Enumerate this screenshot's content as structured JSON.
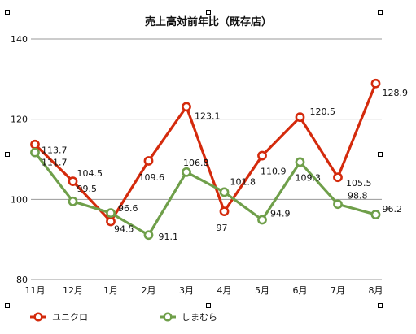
{
  "chart_data": {
    "type": "line",
    "title": "売上高対前年比（既存店）",
    "xlabel": "",
    "ylabel": "",
    "categories": [
      "11月",
      "12月",
      "1月",
      "2月",
      "3月",
      "4月",
      "5月",
      "6月",
      "7月",
      "8月"
    ],
    "ylim": [
      80,
      140
    ],
    "yticks": [
      80,
      100,
      120,
      140
    ],
    "grid": true,
    "legend_position": "bottom",
    "series": [
      {
        "name": "ユニクロ",
        "color": "#d42a0c",
        "values": [
          113.7,
          104.5,
          94.5,
          109.6,
          123.1,
          97,
          110.9,
          120.5,
          105.5,
          128.9
        ],
        "labels": [
          "113.7",
          "104.5",
          "94.5",
          "109.6",
          "123.1",
          "97",
          "110.9",
          "120.5",
          "105.5",
          "128.9"
        ]
      },
      {
        "name": "しまむら",
        "color": "#6f9f4a",
        "values": [
          111.7,
          99.5,
          96.6,
          91.1,
          106.8,
          101.8,
          94.9,
          109.3,
          98.8,
          96.2
        ],
        "labels": [
          "111.7",
          "99.5",
          "96.6",
          "91.1",
          "106.8",
          "101.8",
          "94.9",
          "109.3",
          "98.8",
          "96.2"
        ]
      }
    ]
  }
}
